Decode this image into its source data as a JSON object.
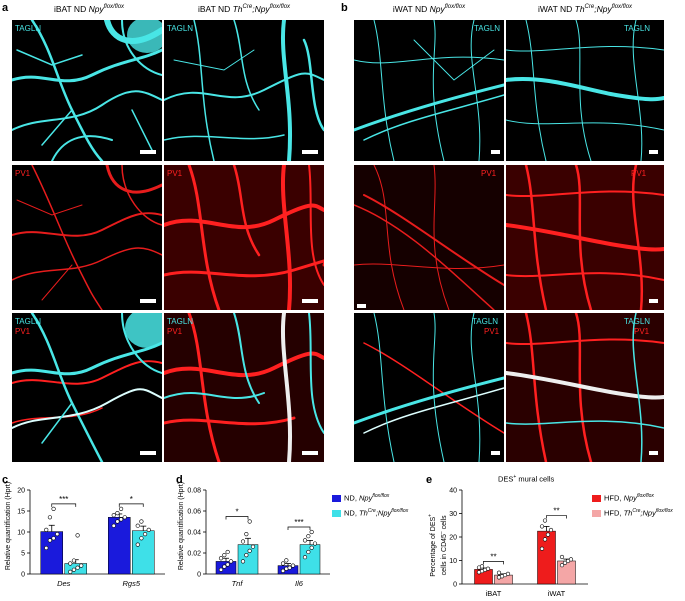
{
  "panels": {
    "a": {
      "letter": "a",
      "col1_title_prefix": "iBAT ND ",
      "col1_gene": "Npy",
      "col1_sup": "flox/flox",
      "col2_title_prefix": "iBAT ND ",
      "col2_gene_a": "Th",
      "col2_sup_a": "Cre",
      "col2_gene_b": ";Npy",
      "col2_sup_b": "flox/flox"
    },
    "b": {
      "letter": "b",
      "col1_title_prefix": "iWAT ND ",
      "col1_gene": "Npy",
      "col1_sup": "flox/flox",
      "col2_title_prefix": "iWAT ND ",
      "col2_gene_a": "Th",
      "col2_sup_a": "Cre",
      "col2_gene_b": ";Npy",
      "col2_sup_b": "flox/flox"
    },
    "c": {
      "letter": "c"
    },
    "d": {
      "letter": "d"
    },
    "e": {
      "letter": "e"
    }
  },
  "channels": {
    "tagln": "TAGLN",
    "pv1": "PV1"
  },
  "colors": {
    "cyan": "#49e6e6",
    "red": "#ff2020",
    "blue": "#1a1adc",
    "lightcyan": "#3ee0e8",
    "hfd_red": "#ee1c1c",
    "hfd_pink": "#f4a6a6"
  },
  "chart_data": [
    {
      "id": "c",
      "type": "bar",
      "ylabel": "Relative quantification (Hprt)",
      "ylim": [
        0,
        20
      ],
      "yticks": [
        0,
        5,
        10,
        15,
        20
      ],
      "categories": [
        "Des",
        "Rgs5"
      ],
      "series": [
        {
          "group": "blue",
          "values": [
            10.1,
            13.5
          ],
          "errors": [
            1.5,
            0.8
          ],
          "points": [
            [
              6.2,
              8.0,
              8.5,
              9.5,
              10.5,
              13.5,
              15.5
            ],
            [
              11.5,
              12.5,
              13.0,
              13.5,
              14.0,
              14.5,
              15.5
            ]
          ]
        },
        {
          "group": "cyan",
          "values": [
            2.5,
            10.3
          ],
          "errors": [
            0.9,
            1.1
          ],
          "points": [
            [
              0.5,
              1.0,
              1.5,
              2.0,
              2.5,
              3.2,
              9.2
            ],
            [
              7.0,
              8.5,
              9.5,
              10.5,
              11.5,
              12.5
            ]
          ]
        }
      ],
      "significance": [
        "***",
        "*"
      ]
    },
    {
      "id": "d",
      "type": "bar",
      "ylabel": "Relative quantification (Hprt)",
      "ylim": [
        0,
        0.08
      ],
      "yticks": [
        "0",
        "0.02",
        "0.04",
        "0.06",
        "0.08"
      ],
      "categories": [
        "Tnf",
        "Il6"
      ],
      "series": [
        {
          "name_prefix": "ND, ",
          "name_gene": "Npy",
          "name_sup": "flox/flox",
          "group": "blue",
          "values": [
            0.012,
            0.008
          ],
          "errors": [
            0.003,
            0.002
          ],
          "points": [
            [
              0.004,
              0.007,
              0.009,
              0.012,
              0.015,
              0.018,
              0.021
            ],
            [
              0.003,
              0.005,
              0.006,
              0.008,
              0.01,
              0.013
            ]
          ]
        },
        {
          "name_prefix": "ND, ",
          "name_gene_a": "Th",
          "name_sup_a": "Cre",
          "name_gene_b": ";Npy",
          "name_sup_b": "flox/flox",
          "group": "cyan",
          "values": [
            0.028,
            0.028
          ],
          "errors": [
            0.006,
            0.004
          ],
          "points": [
            [
              0.012,
              0.018,
              0.022,
              0.026,
              0.031,
              0.038,
              0.05
            ],
            [
              0.016,
              0.021,
              0.025,
              0.029,
              0.032,
              0.036,
              0.04
            ]
          ]
        }
      ],
      "significance": [
        "*",
        "***"
      ]
    },
    {
      "id": "e",
      "type": "bar",
      "title_prefix": "DES",
      "title_sup": "+",
      "title_suffix": " mural cells",
      "ylabel_l1_a": "Percentage of DES",
      "ylabel_l1_sup": "+",
      "ylabel_l2_a": "cells in CD45",
      "ylabel_l2_sup": "–",
      "ylabel_l2_b": " cells",
      "ylim": [
        0,
        40
      ],
      "yticks": [
        0,
        10,
        20,
        30,
        40
      ],
      "categories": [
        "iBAT",
        "iWAT"
      ],
      "series": [
        {
          "name_prefix": "HFD, ",
          "name_gene": "Npy",
          "name_sup": "flox/flox",
          "group": "red",
          "values": [
            6.2,
            22.5
          ],
          "errors": [
            0.6,
            2.0
          ],
          "points": [
            [
              5.0,
              5.5,
              6.0,
              6.5,
              7.0,
              7.5
            ],
            [
              15.0,
              19.0,
              21.0,
              23.0,
              24.5,
              27.0
            ]
          ]
        },
        {
          "name_prefix": "HFD, ",
          "name_gene_a": "Th",
          "name_sup_a": "Cre",
          "name_gene_b": ";Npy",
          "name_sup_b": "flox/flox",
          "group": "pink",
          "values": [
            3.8,
            9.8
          ],
          "errors": [
            0.5,
            0.8
          ],
          "points": [
            [
              2.8,
              3.3,
              3.8,
              4.3,
              4.8
            ],
            [
              8.0,
              9.0,
              9.8,
              10.5,
              11.5
            ]
          ]
        }
      ],
      "significance": [
        "**",
        "**"
      ]
    }
  ]
}
